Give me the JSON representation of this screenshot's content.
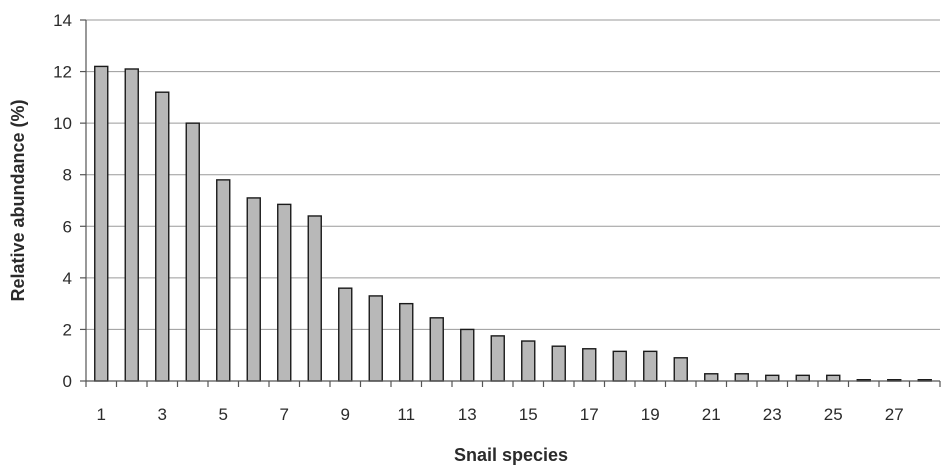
{
  "chart_data": {
    "type": "bar",
    "title": "",
    "xlabel": "Snail species",
    "ylabel": "Relative abundance (%)",
    "ylim": [
      0,
      14
    ],
    "yticks": [
      0,
      2,
      4,
      6,
      8,
      10,
      12,
      14
    ],
    "categories": [
      "1",
      "2",
      "3",
      "4",
      "5",
      "6",
      "7",
      "8",
      "9",
      "10",
      "11",
      "12",
      "13",
      "14",
      "15",
      "16",
      "17",
      "18",
      "19",
      "20",
      "21",
      "22",
      "23",
      "24",
      "25",
      "26",
      "27",
      "28"
    ],
    "shown_xtick_labels": [
      "1",
      "3",
      "5",
      "7",
      "9",
      "11",
      "13",
      "15",
      "17",
      "19",
      "21",
      "23",
      "25",
      "27"
    ],
    "values": [
      12.2,
      12.1,
      11.2,
      10.0,
      7.8,
      7.1,
      6.85,
      6.4,
      3.6,
      3.3,
      3.0,
      2.45,
      2.0,
      1.75,
      1.55,
      1.35,
      1.25,
      1.15,
      1.15,
      0.9,
      0.28,
      0.28,
      0.22,
      0.22,
      0.22,
      0.05,
      0.05,
      0.05
    ],
    "grid": true,
    "legend": "none",
    "colors": {
      "bar_fill": "#b8b8b8",
      "bar_stroke": "#1a1a1a",
      "grid": "#9a9a9a",
      "axis": "#555555"
    }
  }
}
